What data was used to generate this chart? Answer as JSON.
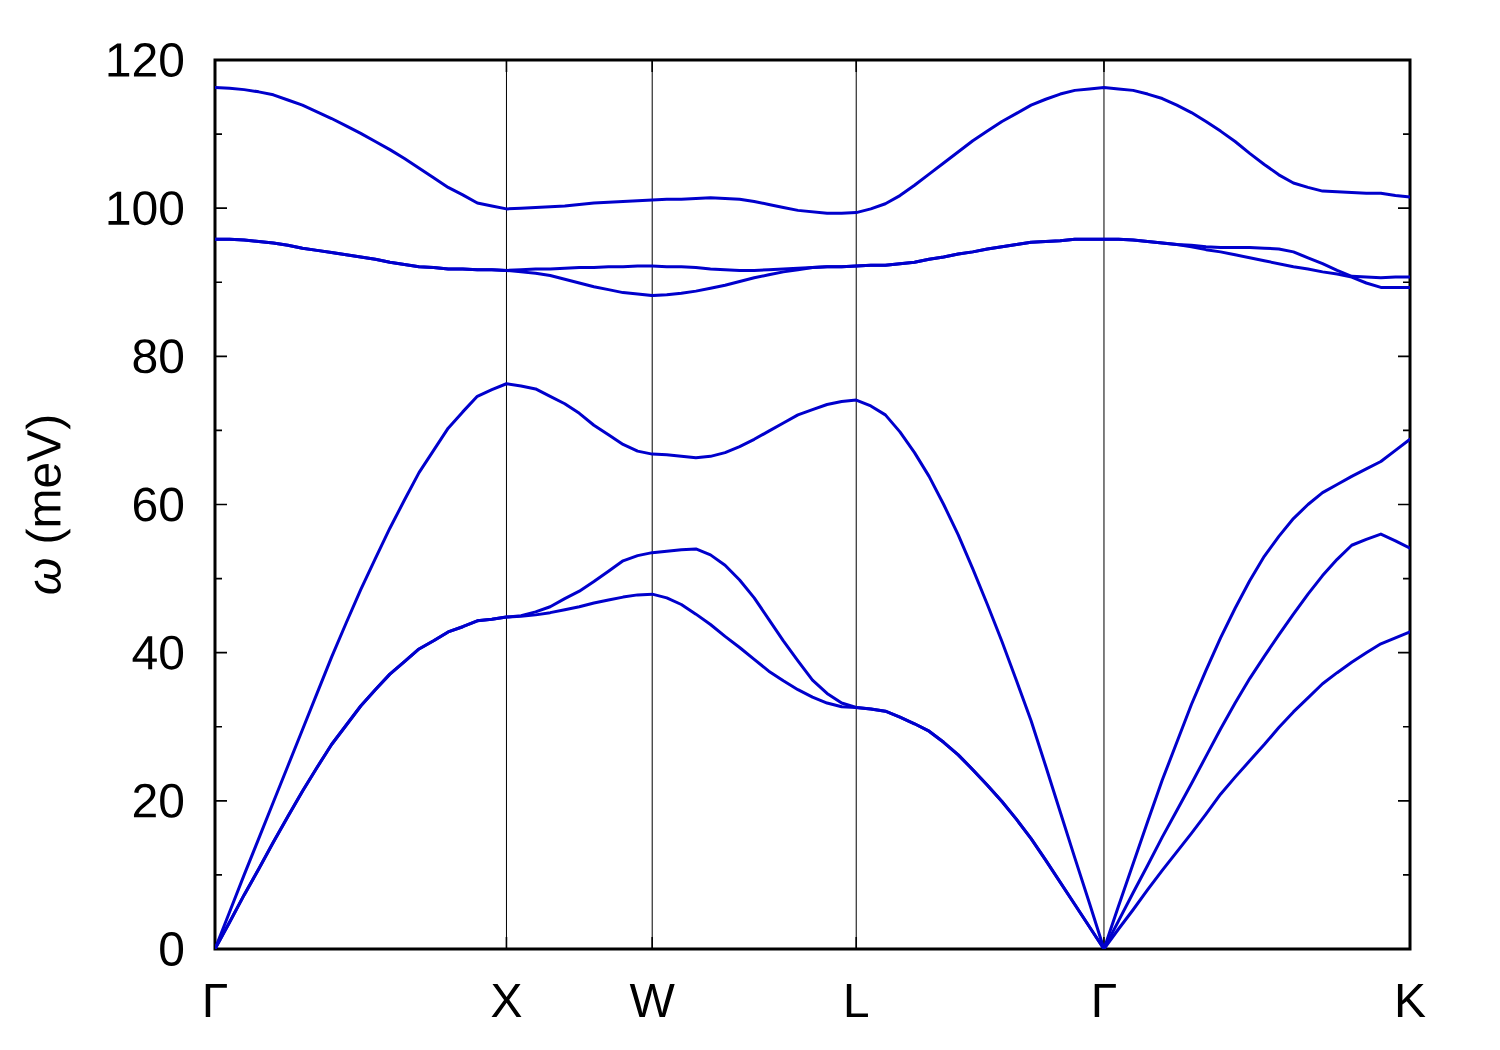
{
  "chart_data": {
    "type": "line",
    "ylabel": "*ω* (meV)",
    "grid": "x",
    "ylim": [
      0,
      120
    ],
    "yticks": [
      0,
      {
        "value": 10,
        "label": null
      },
      20,
      {
        "value": 30,
        "label": null
      },
      40,
      {
        "value": 50,
        "label": null
      },
      60,
      {
        "value": 70,
        "label": null
      },
      80,
      {
        "value": 90,
        "label": null
      },
      100,
      {
        "value": 110,
        "label": null
      },
      120
    ],
    "categories": [
      "Γ",
      null,
      null,
      null,
      null,
      null,
      null,
      null,
      null,
      null,
      null,
      null,
      null,
      null,
      null,
      null,
      null,
      null,
      null,
      null,
      "X",
      null,
      null,
      null,
      null,
      null,
      null,
      null,
      null,
      null,
      "W",
      null,
      null,
      null,
      null,
      null,
      null,
      null,
      null,
      null,
      null,
      null,
      null,
      null,
      "L",
      null,
      null,
      null,
      null,
      null,
      null,
      null,
      null,
      null,
      null,
      null,
      null,
      null,
      null,
      null,
      null,
      "Γ",
      null,
      null,
      null,
      null,
      null,
      null,
      null,
      null,
      null,
      null,
      null,
      null,
      null,
      null,
      null,
      null,
      null,
      null,
      null,
      null,
      "K"
    ],
    "series": [
      {
        "color": "#0000cc",
        "values": [
          0.0,
          3.6,
          7.3,
          10.8,
          14.4,
          17.9,
          21.3,
          24.5,
          27.6,
          30.2,
          32.8,
          35.0,
          37.1,
          38.8,
          40.5,
          41.6,
          42.8,
          43.5,
          44.3,
          44.5,
          44.8,
          44.9,
          45.1,
          45.4,
          45.8,
          46.2,
          46.7,
          47.1,
          47.5,
          47.8,
          47.9,
          47.4,
          46.5,
          45.2,
          43.8,
          42.2,
          40.7,
          39.1,
          37.5,
          36.2,
          35.0,
          34.0,
          33.2,
          32.7,
          32.6,
          32.4,
          32.1,
          31.3,
          30.4,
          29.4,
          27.9,
          26.2,
          24.2,
          22.1,
          19.9,
          17.5,
          14.9,
          12.0,
          9.0,
          6.0,
          3.0,
          0.0,
          2.7,
          5.3,
          8.0,
          10.6,
          13.1,
          15.6,
          18.2,
          20.9,
          23.2,
          25.4,
          27.6,
          29.9,
          32.0,
          33.9,
          35.8,
          37.3,
          38.7,
          40.0,
          41.2,
          42.0,
          42.8
        ]
      },
      {
        "color": "#0000cc",
        "values": [
          0.0,
          3.6,
          7.3,
          10.8,
          14.4,
          17.9,
          21.3,
          24.5,
          27.6,
          30.2,
          32.8,
          35.0,
          37.1,
          38.8,
          40.5,
          41.6,
          42.8,
          43.5,
          44.3,
          44.5,
          44.8,
          45.0,
          45.5,
          46.2,
          47.3,
          48.3,
          49.6,
          51.0,
          52.4,
          53.1,
          53.5,
          53.7,
          53.9,
          54.0,
          53.2,
          51.8,
          49.8,
          47.4,
          44.5,
          41.6,
          38.9,
          36.3,
          34.5,
          33.2,
          32.6,
          32.4,
          32.1,
          31.3,
          30.4,
          29.4,
          27.9,
          26.2,
          24.2,
          22.1,
          19.9,
          17.5,
          14.9,
          12.0,
          9.0,
          6.0,
          3.0,
          0.0,
          3.8,
          7.6,
          11.3,
          15.1,
          18.7,
          22.3,
          26.0,
          29.7,
          33.2,
          36.5,
          39.5,
          42.4,
          45.2,
          47.9,
          50.4,
          52.6,
          54.5,
          55.3,
          56.0,
          55.1,
          54.1
        ]
      },
      {
        "color": "#0000cc",
        "values": [
          0.0,
          5.0,
          10.0,
          14.9,
          19.8,
          24.7,
          29.6,
          34.5,
          39.4,
          44.0,
          48.5,
          52.7,
          56.8,
          60.6,
          64.3,
          67.3,
          70.3,
          72.5,
          74.6,
          75.5,
          76.3,
          76.0,
          75.6,
          74.6,
          73.6,
          72.3,
          70.7,
          69.4,
          68.1,
          67.2,
          66.8,
          66.7,
          66.5,
          66.3,
          66.5,
          67.0,
          67.8,
          68.8,
          69.9,
          71.0,
          72.1,
          72.8,
          73.5,
          73.9,
          74.1,
          73.3,
          72.1,
          69.8,
          67.0,
          63.8,
          60.0,
          55.9,
          51.3,
          46.5,
          41.5,
          36.2,
          30.8,
          24.7,
          18.5,
          12.3,
          6.2,
          0.0,
          5.8,
          11.5,
          17.2,
          22.8,
          27.9,
          33.0,
          37.6,
          42.0,
          46.0,
          49.7,
          53.0,
          55.7,
          58.1,
          60.0,
          61.6,
          62.7,
          63.8,
          64.8,
          65.8,
          67.3,
          68.8
        ]
      },
      {
        "color": "#0000cc",
        "values": [
          95.8,
          95.8,
          95.7,
          95.5,
          95.3,
          95.0,
          94.6,
          94.3,
          94.0,
          93.7,
          93.4,
          93.1,
          92.7,
          92.4,
          92.1,
          92.0,
          91.8,
          91.8,
          91.7,
          91.7,
          91.6,
          91.4,
          91.2,
          90.9,
          90.4,
          89.9,
          89.4,
          89.0,
          88.6,
          88.4,
          88.2,
          88.3,
          88.5,
          88.8,
          89.2,
          89.6,
          90.1,
          90.6,
          91.0,
          91.4,
          91.7,
          92.0,
          92.1,
          92.1,
          92.2,
          92.3,
          92.3,
          92.5,
          92.7,
          93.1,
          93.4,
          93.8,
          94.1,
          94.5,
          94.8,
          95.1,
          95.4,
          95.5,
          95.6,
          95.8,
          95.8,
          95.8,
          95.8,
          95.7,
          95.5,
          95.3,
          95.1,
          94.8,
          94.4,
          94.1,
          93.7,
          93.3,
          92.9,
          92.5,
          92.1,
          91.8,
          91.4,
          91.1,
          90.7,
          89.9,
          89.3,
          89.3,
          89.3
        ]
      },
      {
        "color": "#0000cc",
        "values": [
          95.8,
          95.8,
          95.7,
          95.5,
          95.3,
          95.0,
          94.6,
          94.3,
          94.0,
          93.7,
          93.4,
          93.1,
          92.7,
          92.4,
          92.1,
          92.0,
          91.8,
          91.8,
          91.7,
          91.7,
          91.6,
          91.7,
          91.8,
          91.8,
          91.9,
          92.0,
          92.0,
          92.1,
          92.1,
          92.2,
          92.2,
          92.1,
          92.1,
          92.0,
          91.8,
          91.7,
          91.6,
          91.6,
          91.7,
          91.8,
          91.9,
          92.0,
          92.1,
          92.1,
          92.2,
          92.3,
          92.3,
          92.5,
          92.7,
          93.1,
          93.4,
          93.8,
          94.1,
          94.5,
          94.8,
          95.1,
          95.4,
          95.5,
          95.6,
          95.8,
          95.8,
          95.8,
          95.8,
          95.7,
          95.5,
          95.3,
          95.1,
          95.0,
          94.8,
          94.7,
          94.7,
          94.7,
          94.6,
          94.5,
          94.1,
          93.3,
          92.5,
          91.6,
          90.8,
          90.7,
          90.6,
          90.7,
          90.7
        ]
      },
      {
        "color": "#0000cc",
        "values": [
          116.3,
          116.2,
          116.0,
          115.7,
          115.3,
          114.6,
          113.9,
          113.0,
          112.1,
          111.1,
          110.1,
          109.0,
          107.9,
          106.7,
          105.4,
          104.1,
          102.8,
          101.8,
          100.7,
          100.3,
          99.9,
          100.0,
          100.1,
          100.2,
          100.3,
          100.5,
          100.7,
          100.8,
          100.9,
          101.0,
          101.1,
          101.2,
          101.2,
          101.3,
          101.4,
          101.3,
          101.2,
          100.9,
          100.5,
          100.1,
          99.7,
          99.5,
          99.3,
          99.3,
          99.4,
          99.9,
          100.6,
          101.7,
          103.1,
          104.6,
          106.1,
          107.6,
          109.1,
          110.4,
          111.7,
          112.8,
          113.9,
          114.7,
          115.4,
          115.9,
          116.1,
          116.3,
          116.1,
          115.9,
          115.4,
          114.8,
          113.9,
          112.9,
          111.7,
          110.4,
          109.0,
          107.4,
          105.9,
          104.5,
          103.4,
          102.8,
          102.3,
          102.2,
          102.1,
          102.0,
          102.0,
          101.7,
          101.5
        ]
      }
    ]
  }
}
